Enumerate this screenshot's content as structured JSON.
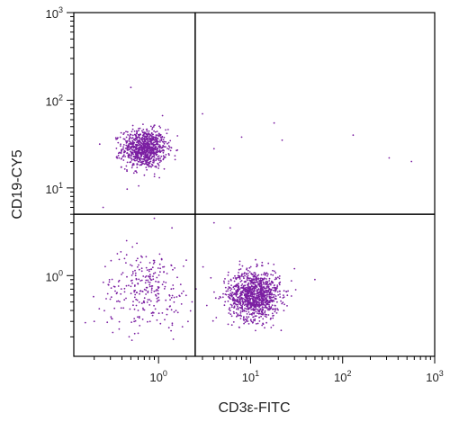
{
  "chart_data": {
    "type": "scatter",
    "title": "",
    "xlabel": "CD3ε-FITC",
    "ylabel": "CD19-CY5",
    "xscale": "log",
    "yscale": "log",
    "xlim": [
      0.12,
      1000
    ],
    "ylim": [
      0.12,
      1000
    ],
    "x_ticks": [
      {
        "base": "10",
        "exp": "0",
        "value": 1
      },
      {
        "base": "10",
        "exp": "1",
        "value": 10
      },
      {
        "base": "10",
        "exp": "2",
        "value": 100
      },
      {
        "base": "10",
        "exp": "3",
        "value": 1000
      }
    ],
    "y_ticks": [
      {
        "base": "10",
        "exp": "0",
        "value": 1
      },
      {
        "base": "10",
        "exp": "1",
        "value": 10
      },
      {
        "base": "10",
        "exp": "2",
        "value": 100
      },
      {
        "base": "10",
        "exp": "3",
        "value": 1000
      }
    ],
    "quadrant_gates": {
      "x": 2.5,
      "y": 5.0
    },
    "grid": false,
    "legend": "none",
    "point_color": "#7b1fa2",
    "populations": [
      {
        "center_x": 0.7,
        "center_y": 28,
        "spread_x_log10": 0.12,
        "spread_y_log10": 0.11,
        "approx_events": 900
      },
      {
        "center_x": 11,
        "center_y": 0.6,
        "spread_x_log10": 0.14,
        "spread_y_log10": 0.14,
        "approx_events": 1100
      },
      {
        "center_x": 0.75,
        "center_y": 0.7,
        "spread_x_log10": 0.25,
        "spread_y_log10": 0.22,
        "approx_events": 280
      }
    ],
    "outliers": [
      {
        "x": 130,
        "y": 40
      },
      {
        "x": 560,
        "y": 20
      },
      {
        "x": 320,
        "y": 22
      },
      {
        "x": 18,
        "y": 55
      },
      {
        "x": 22,
        "y": 35
      },
      {
        "x": 8,
        "y": 38
      },
      {
        "x": 4,
        "y": 28
      },
      {
        "x": 3,
        "y": 70
      },
      {
        "x": 0.5,
        "y": 140
      },
      {
        "x": 0.25,
        "y": 6
      },
      {
        "x": 1.4,
        "y": 3.5
      },
      {
        "x": 0.9,
        "y": 4.5
      },
      {
        "x": 0.45,
        "y": 2.5
      },
      {
        "x": 0.6,
        "y": 0.22
      },
      {
        "x": 0.2,
        "y": 0.3
      },
      {
        "x": 30,
        "y": 1.2
      },
      {
        "x": 50,
        "y": 0.9
      },
      {
        "x": 4,
        "y": 4
      },
      {
        "x": 6,
        "y": 3.5
      },
      {
        "x": 2,
        "y": 1.5
      }
    ]
  }
}
